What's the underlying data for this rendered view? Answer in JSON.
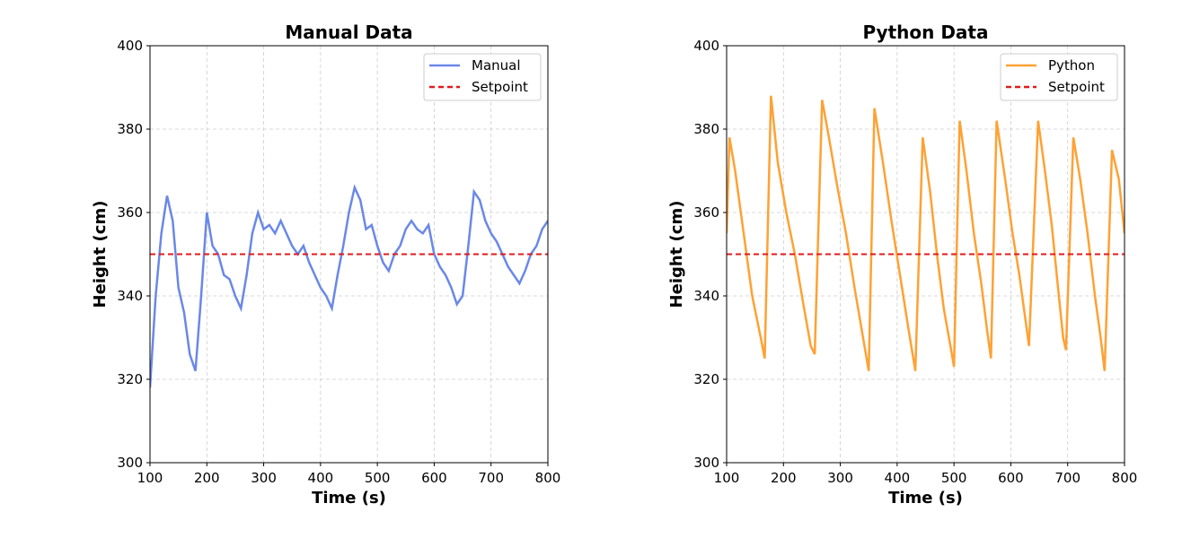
{
  "chart_data": [
    {
      "type": "line",
      "title": "Manual Data",
      "xlabel": "Time (s)",
      "ylabel": "Height (cm)",
      "xlim": [
        100,
        800
      ],
      "ylim": [
        300,
        400
      ],
      "xticks": [
        100,
        200,
        300,
        400,
        500,
        600,
        700,
        800
      ],
      "yticks": [
        300,
        320,
        340,
        360,
        380,
        400
      ],
      "grid": true,
      "legend": "upper right",
      "series": [
        {
          "name": "Manual",
          "color": "#6a88e8",
          "x": [
            100,
            110,
            120,
            130,
            140,
            150,
            160,
            170,
            180,
            190,
            200,
            210,
            220,
            230,
            240,
            250,
            260,
            270,
            280,
            290,
            300,
            310,
            320,
            330,
            340,
            350,
            360,
            370,
            380,
            390,
            400,
            410,
            420,
            430,
            440,
            450,
            460,
            470,
            480,
            490,
            500,
            510,
            520,
            530,
            540,
            550,
            560,
            570,
            580,
            590,
            600,
            610,
            620,
            630,
            640,
            650,
            660,
            670,
            680,
            690,
            700,
            710,
            720,
            730,
            740,
            750,
            760,
            770,
            780,
            790,
            800
          ],
          "values": [
            318,
            340,
            355,
            364,
            358,
            342,
            336,
            326,
            322,
            340,
            360,
            352,
            350,
            345,
            344,
            340,
            337,
            345,
            355,
            360,
            356,
            357,
            355,
            358,
            355,
            352,
            350,
            352,
            348,
            345,
            342,
            340,
            337,
            345,
            352,
            360,
            366,
            363,
            356,
            357,
            352,
            348,
            346,
            350,
            352,
            356,
            358,
            356,
            355,
            357,
            350,
            347,
            345,
            342,
            338,
            340,
            352,
            365,
            363,
            358,
            355,
            353,
            350,
            347,
            345,
            343,
            346,
            350,
            352,
            356,
            358
          ]
        },
        {
          "name": "Setpoint",
          "color": "#e31a1c",
          "dash": true,
          "x": [
            100,
            800
          ],
          "values": [
            350,
            350
          ]
        }
      ]
    },
    {
      "type": "line",
      "title": "Python Data",
      "xlabel": "Time (s)",
      "ylabel": "Height (cm)",
      "xlim": [
        100,
        800
      ],
      "ylim": [
        300,
        400
      ],
      "xticks": [
        100,
        200,
        300,
        400,
        500,
        600,
        700,
        800
      ],
      "yticks": [
        300,
        320,
        340,
        360,
        380,
        400
      ],
      "grid": true,
      "legend": "upper right",
      "series": [
        {
          "name": "Python",
          "color": "#ffa133",
          "x": [
            100,
            105,
            115,
            130,
            145,
            160,
            167,
            178,
            190,
            205,
            220,
            235,
            248,
            255,
            268,
            280,
            295,
            310,
            325,
            340,
            350,
            360,
            375,
            390,
            405,
            420,
            432,
            445,
            458,
            470,
            482,
            495,
            500,
            510,
            522,
            535,
            548,
            558,
            565,
            575,
            590,
            603,
            615,
            625,
            632,
            648,
            660,
            672,
            683,
            692,
            697,
            710,
            722,
            735,
            748,
            758,
            765,
            778,
            790,
            800
          ],
          "values": [
            355,
            378,
            370,
            355,
            340,
            330,
            325,
            388,
            372,
            360,
            350,
            338,
            328,
            326,
            387,
            378,
            366,
            355,
            342,
            330,
            322,
            385,
            372,
            358,
            345,
            332,
            322,
            378,
            365,
            350,
            337,
            327,
            323,
            382,
            370,
            355,
            343,
            332,
            325,
            382,
            368,
            355,
            345,
            335,
            328,
            382,
            370,
            357,
            342,
            330,
            327,
            378,
            368,
            355,
            340,
            330,
            322,
            375,
            368,
            355
          ]
        },
        {
          "name": "Setpoint",
          "color": "#e31a1c",
          "dash": true,
          "x": [
            100,
            800
          ],
          "values": [
            350,
            350
          ]
        }
      ]
    }
  ]
}
